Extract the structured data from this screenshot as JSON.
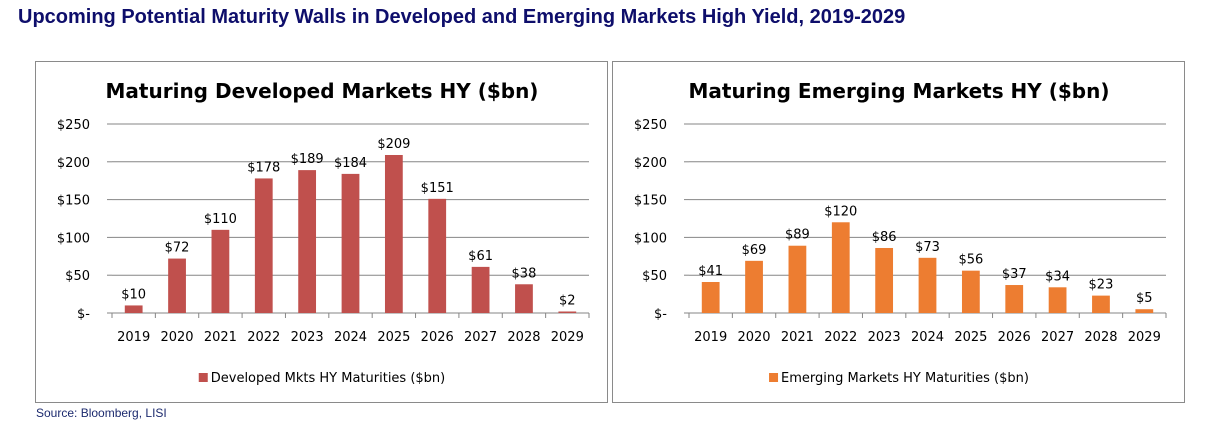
{
  "page": {
    "title": "Upcoming Potential Maturity Walls in Developed and Emerging Markets High Yield, 2019-2029",
    "source": "Source: Bloomberg, LISI"
  },
  "chart_data": [
    {
      "type": "bar",
      "title": "Maturing Developed Markets HY ($bn)",
      "xlabel": "",
      "ylabel": "",
      "categories": [
        "2019",
        "2020",
        "2021",
        "2022",
        "2023",
        "2024",
        "2025",
        "2026",
        "2027",
        "2028",
        "2029"
      ],
      "series": [
        {
          "name": "Developed Mkts HY Maturities ($bn)",
          "color": "#c0504d",
          "values": [
            10,
            72,
            110,
            178,
            189,
            184,
            209,
            151,
            61,
            38,
            2
          ]
        }
      ],
      "data_labels": [
        "$10",
        "$72",
        "$110",
        "$178",
        "$189",
        "$184",
        "$209",
        "$151",
        "$61",
        "$38",
        "$2"
      ],
      "ylim": [
        0,
        250
      ],
      "yticks": [
        0,
        50,
        100,
        150,
        200,
        250
      ],
      "ytick_labels": [
        "$-",
        "$50",
        "$100",
        "$150",
        "$200",
        "$250"
      ],
      "grid": true,
      "legend": "bottom"
    },
    {
      "type": "bar",
      "title": "Maturing Emerging Markets HY ($bn)",
      "xlabel": "",
      "ylabel": "",
      "categories": [
        "2019",
        "2020",
        "2021",
        "2022",
        "2023",
        "2024",
        "2025",
        "2026",
        "2027",
        "2028",
        "2029"
      ],
      "series": [
        {
          "name": "Emerging Markets HY Maturities ($bn)",
          "color": "#ed7d31",
          "values": [
            41,
            69,
            89,
            120,
            86,
            73,
            56,
            37,
            34,
            23,
            5
          ]
        }
      ],
      "data_labels": [
        "$41",
        "$69",
        "$89",
        "$120",
        "$86",
        "$73",
        "$56",
        "$37",
        "$34",
        "$23",
        "$5"
      ],
      "ylim": [
        0,
        250
      ],
      "yticks": [
        0,
        50,
        100,
        150,
        200,
        250
      ],
      "ytick_labels": [
        "$-",
        "$50",
        "$100",
        "$150",
        "$200",
        "$250"
      ],
      "grid": true,
      "legend": "bottom"
    }
  ]
}
